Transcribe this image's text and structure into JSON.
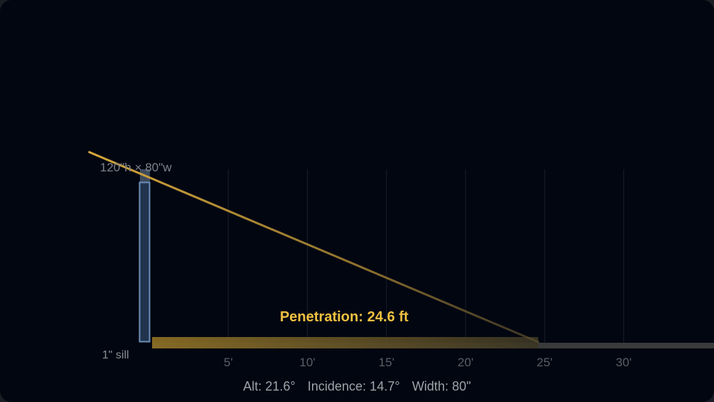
{
  "diagram": {
    "window_label": "120\"h × 80\"w",
    "sill_label": "1\" sill",
    "penetration_label": "Penetration: 24.6 ft",
    "penetration_ft": 24.6,
    "ticks": [
      {
        "ft": 5,
        "label": "5'"
      },
      {
        "ft": 10,
        "label": "10'"
      },
      {
        "ft": 15,
        "label": "15'"
      },
      {
        "ft": 20,
        "label": "20'"
      },
      {
        "ft": 25,
        "label": "25'"
      },
      {
        "ft": 30,
        "label": "30'"
      }
    ],
    "stats": {
      "alt": "Alt: 21.6°",
      "incidence": "Incidence: 14.7°",
      "width": "Width: 80\""
    },
    "colors": {
      "background": "#020611",
      "window": "#6a8fb8",
      "sun_ray": "#c9a13a",
      "penetration_text": "#f0c040",
      "grid": "#1a2030",
      "floor": "#3a3a3a",
      "text_muted": "#7d818a"
    }
  }
}
